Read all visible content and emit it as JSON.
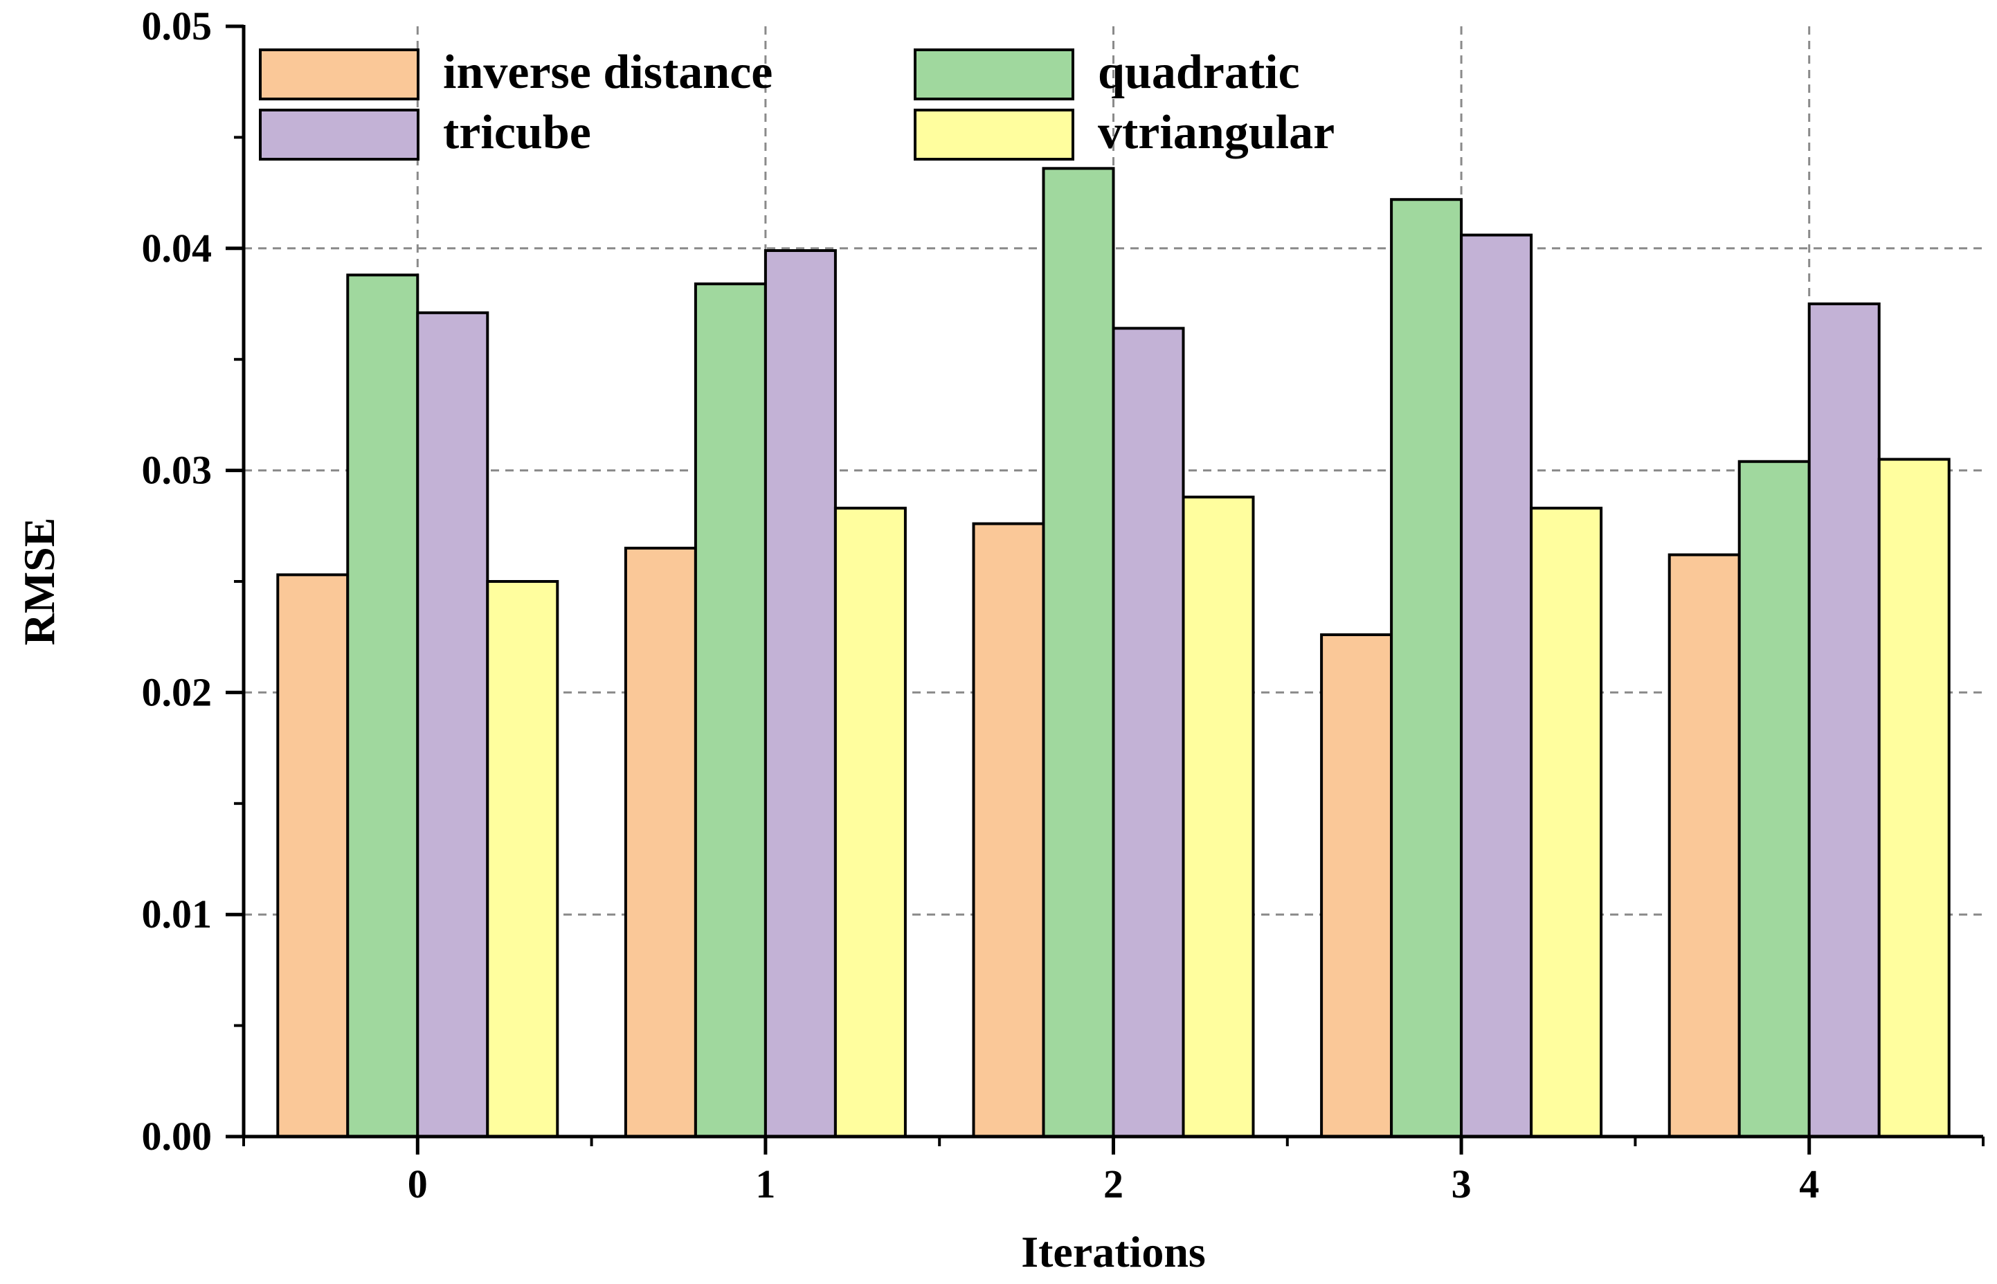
{
  "chart_data": {
    "type": "bar",
    "title": "",
    "xlabel": "Iterations",
    "ylabel": "RMSE",
    "categories": [
      "0",
      "1",
      "2",
      "3",
      "4"
    ],
    "ylim": [
      0,
      0.05
    ],
    "yticks": [
      "0.00",
      "0.01",
      "0.02",
      "0.03",
      "0.04",
      "0.05"
    ],
    "grid": true,
    "legend_position": "top-left",
    "series": [
      {
        "name": "inverse distance",
        "color": "#FAC898",
        "values": [
          0.0253,
          0.0265,
          0.0276,
          0.0226,
          0.0262
        ]
      },
      {
        "name": "quadratic",
        "color": "#A0D89E",
        "values": [
          0.0388,
          0.0384,
          0.0436,
          0.0422,
          0.0304
        ]
      },
      {
        "name": "tricube",
        "color": "#C3B2D6",
        "values": [
          0.0371,
          0.0399,
          0.0364,
          0.0406,
          0.0375
        ]
      },
      {
        "name": "vtriangular",
        "color": "#FFFE9E",
        "values": [
          0.025,
          0.0283,
          0.0288,
          0.0283,
          0.0305
        ]
      }
    ]
  }
}
